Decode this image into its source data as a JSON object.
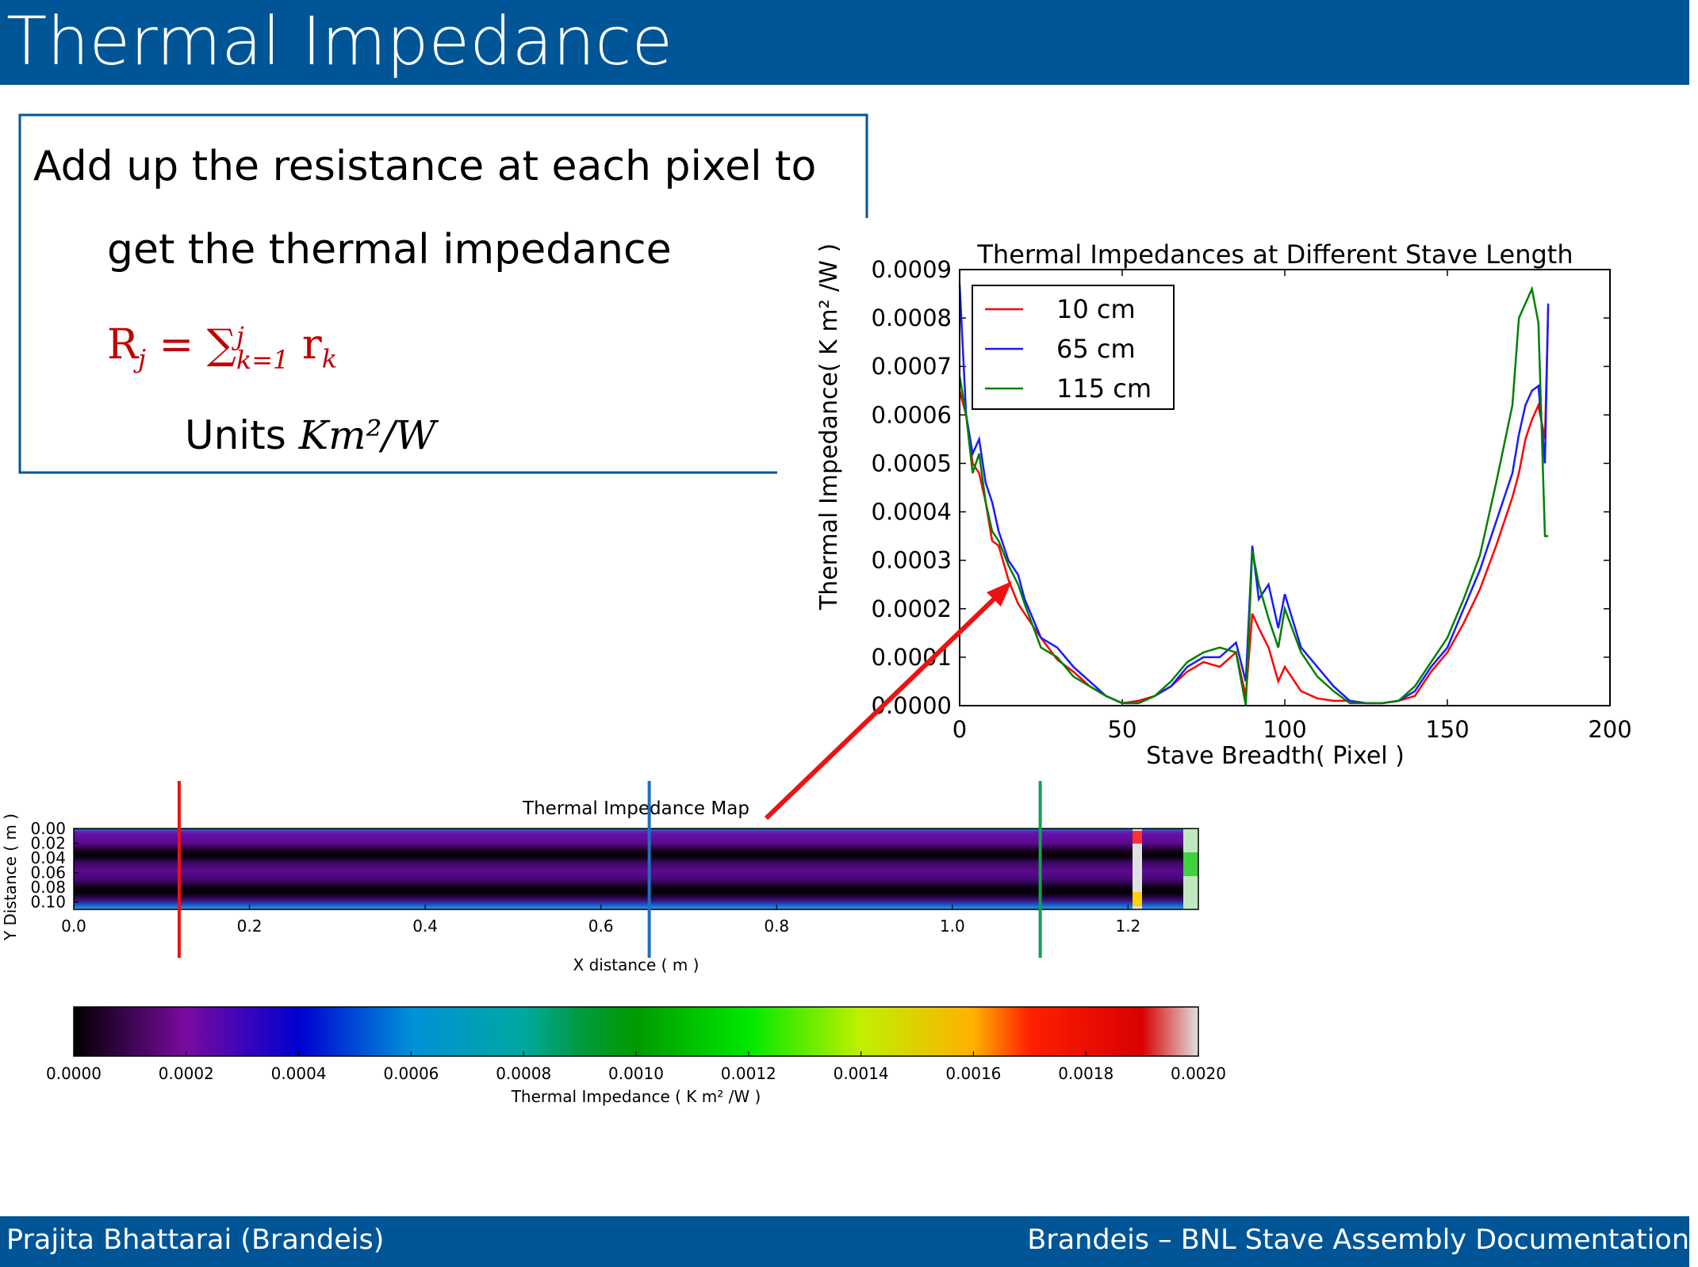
{
  "slide": {
    "title": "Thermal Impedance",
    "bullet_line1": "Add up the resistance at each pixel to",
    "bullet_line2": "get the thermal impedance",
    "formula": "R_j = ∑_{k=1}^{j} r_k",
    "units_label": "Units",
    "units_value": "Km²/W",
    "footer_left": "Prajita Bhattarai (Brandeis)",
    "footer_right": "Brandeis – BNL Stave Assembly Documentation"
  },
  "colors": {
    "bar": "#005596",
    "formula": "#c00000",
    "arrow": "#ee1111"
  },
  "chart_data": [
    {
      "type": "line",
      "title": "Thermal Impedances at Different Stave Length",
      "xlabel": "Stave Breadth( Pixel )",
      "ylabel": "Thermal Impedance( K m² /W )",
      "xlim": [
        0,
        200
      ],
      "ylim": [
        0,
        0.0009
      ],
      "xticks": [
        "0",
        "50",
        "100",
        "150",
        "200"
      ],
      "yticks": [
        "0.0000",
        "0.0001",
        "0.0002",
        "0.0003",
        "0.0004",
        "0.0005",
        "0.0006",
        "0.0007",
        "0.0008",
        "0.0009"
      ],
      "legend_position": "top-left",
      "series": [
        {
          "name": "10 cm",
          "color": "#ff0000",
          "x": [
            0,
            2,
            4,
            6,
            8,
            10,
            12,
            15,
            18,
            20,
            25,
            30,
            35,
            40,
            45,
            50,
            55,
            60,
            65,
            70,
            75,
            80,
            85,
            88,
            90,
            92,
            95,
            98,
            100,
            105,
            110,
            115,
            120,
            125,
            130,
            135,
            140,
            145,
            150,
            155,
            160,
            165,
            170,
            172,
            174,
            176,
            178,
            180,
            181
          ],
          "y": [
            0.00065,
            0.0006,
            0.0005,
            0.00048,
            0.00042,
            0.00034,
            0.00033,
            0.00026,
            0.00021,
            0.00019,
            0.00014,
            9.5e-05,
            7e-05,
            4e-05,
            2e-05,
            5e-06,
            1e-05,
            2e-05,
            4e-05,
            7e-05,
            9e-05,
            8e-05,
            0.00011,
            2e-05,
            0.00019,
            0.00016,
            0.00012,
            5e-05,
            8e-05,
            3e-05,
            1.5e-05,
            1e-05,
            1e-05,
            5e-06,
            5e-06,
            1e-05,
            2e-05,
            7e-05,
            0.00011,
            0.00017,
            0.00024,
            0.00033,
            0.00043,
            0.00048,
            0.00055,
            0.00059,
            0.00062,
            0.00055,
            0.00082
          ]
        },
        {
          "name": "65 cm",
          "color": "#1a1aff",
          "x": [
            0,
            2,
            4,
            6,
            8,
            10,
            12,
            15,
            18,
            20,
            25,
            30,
            35,
            40,
            45,
            50,
            55,
            60,
            65,
            70,
            75,
            80,
            85,
            88,
            90,
            92,
            95,
            98,
            100,
            105,
            110,
            115,
            120,
            125,
            130,
            135,
            140,
            145,
            150,
            155,
            160,
            165,
            170,
            172,
            174,
            176,
            178,
            180,
            181
          ],
          "y": [
            0.00087,
            0.0006,
            0.00052,
            0.00055,
            0.00046,
            0.00042,
            0.00036,
            0.0003,
            0.00027,
            0.00022,
            0.00014,
            0.00012,
            8e-05,
            5e-05,
            2e-05,
            5e-06,
            5e-06,
            2e-05,
            4e-05,
            8e-05,
            0.0001,
            0.0001,
            0.00013,
            5e-05,
            0.00033,
            0.00022,
            0.00025,
            0.00016,
            0.00023,
            0.00012,
            8e-05,
            4e-05,
            1e-05,
            5e-06,
            5e-06,
            1e-05,
            3e-05,
            8e-05,
            0.00012,
            0.0002,
            0.00028,
            0.00038,
            0.00048,
            0.00056,
            0.00062,
            0.00065,
            0.00066,
            0.0005,
            0.00083
          ]
        },
        {
          "name": "115 cm",
          "color": "#008000",
          "x": [
            0,
            2,
            4,
            6,
            8,
            10,
            12,
            15,
            18,
            20,
            25,
            30,
            35,
            40,
            45,
            50,
            55,
            60,
            65,
            70,
            75,
            80,
            85,
            88,
            90,
            92,
            95,
            98,
            100,
            105,
            110,
            115,
            120,
            125,
            130,
            135,
            140,
            145,
            150,
            155,
            160,
            165,
            170,
            172,
            174,
            176,
            178,
            180,
            181
          ],
          "y": [
            0.00068,
            0.0006,
            0.00048,
            0.00052,
            0.00042,
            0.00036,
            0.00034,
            0.00029,
            0.00025,
            0.00021,
            0.00012,
            0.0001,
            6e-05,
            4e-05,
            2e-05,
            5e-06,
            5e-06,
            2e-05,
            5e-05,
            9e-05,
            0.00011,
            0.00012,
            0.00011,
            0.0,
            0.00032,
            0.00025,
            0.00018,
            0.00012,
            0.0002,
            0.00011,
            6e-05,
            3e-05,
            5e-06,
            5e-06,
            5e-06,
            1e-05,
            4e-05,
            9e-05,
            0.00014,
            0.00022,
            0.00031,
            0.00046,
            0.00062,
            0.0008,
            0.00083,
            0.00086,
            0.00079,
            0.00035,
            0.00035
          ]
        }
      ]
    },
    {
      "type": "heatmap",
      "title": "Thermal Impedance Map",
      "xlabel": "X distance ( m )",
      "ylabel": "Y Distance ( m )",
      "xlim": [
        0,
        1.28
      ],
      "ylim": [
        0.11,
        0
      ],
      "xticks": [
        "0.0",
        "0.2",
        "0.4",
        "0.6",
        "0.8",
        "1.0",
        "1.2"
      ],
      "yticks": [
        "0.00",
        "0.02",
        "0.04",
        "0.06",
        "0.08",
        "0.10"
      ],
      "markers": [
        {
          "name": "10 cm",
          "x": 0.12,
          "color": "#ee1111"
        },
        {
          "name": "65 cm",
          "x": 0.655,
          "color": "#1f6fbf"
        },
        {
          "name": "115 cm",
          "x": 1.1,
          "color": "#12a050"
        }
      ],
      "colorbar": {
        "label": "Thermal Impedance ( K m² /W )",
        "range": [
          0,
          0.002
        ],
        "ticks": [
          "0.0000",
          "0.0002",
          "0.0004",
          "0.0006",
          "0.0008",
          "0.0010",
          "0.0012",
          "0.0014",
          "0.0016",
          "0.0018",
          "0.0020"
        ]
      }
    }
  ]
}
